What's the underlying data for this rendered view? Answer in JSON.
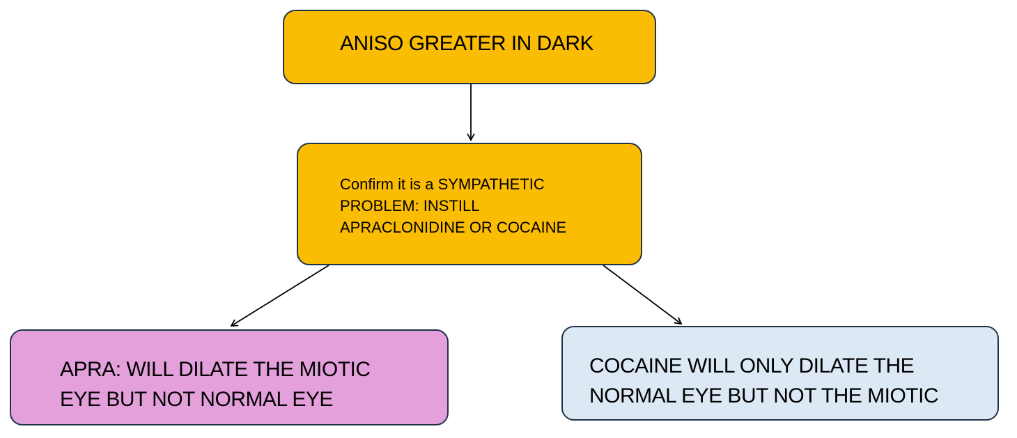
{
  "colors": {
    "amber": "#fbbc04",
    "pink": "#e3a0da",
    "light_blue": "#dce9f5",
    "border": "#1f3347"
  },
  "nodes": {
    "top": {
      "text": "ANISO GREATER IN DARK"
    },
    "middle": {
      "lines": [
        "Confirm it is a SYMPATHETIC",
        "PROBLEM: INSTILL",
        "APRACLONIDINE OR COCAINE"
      ]
    },
    "left": {
      "lines": [
        "APRA: WILL DILATE THE MIOTIC",
        "EYE BUT NOT NORMAL EYE"
      ]
    },
    "right": {
      "lines": [
        "COCAINE WILL ONLY DILATE THE",
        "NORMAL EYE BUT NOT THE MIOTIC"
      ]
    }
  },
  "edges": [
    {
      "from": "top",
      "to": "middle"
    },
    {
      "from": "middle",
      "to": "left"
    },
    {
      "from": "middle",
      "to": "right"
    }
  ]
}
